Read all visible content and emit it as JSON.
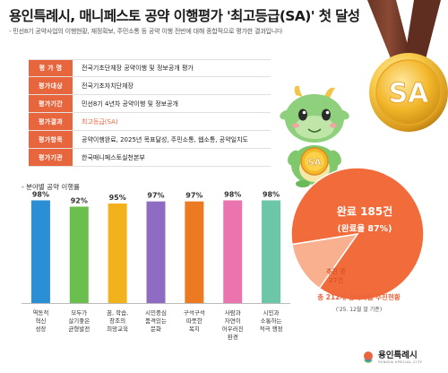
{
  "header": {
    "title": "용인특례시, 매니페스토 공약 이행평가 '최고등급(SA)' 첫 달성",
    "subtitle": "- 민선8기 공약사업의 이행현황, 재정확보, 주민소통 등 공약 이행 전반에 대해 종합적으로 평가한 결과입니다"
  },
  "medal": {
    "label": "SA"
  },
  "info_table": {
    "rows": [
      {
        "label": "평 가 명",
        "value": "전국기초단체장 공약이행 및 정보공개 평가",
        "highlight": false
      },
      {
        "label": "평가대상",
        "value": "전국기초자치단체장",
        "highlight": false
      },
      {
        "label": "평가기간",
        "value": "민선8기 4년차 공약이행 및 정보공개",
        "highlight": false
      },
      {
        "label": "평가결과",
        "value": "최고등급(SA)",
        "highlight": true
      },
      {
        "label": "평가항목",
        "value": "공약이행완료, 2025년 목표달성, 주민소통, 웹소통, 공약일치도",
        "highlight": false
      },
      {
        "label": "평가기관",
        "value": "한국매니페스토실천본부",
        "highlight": false
      }
    ]
  },
  "mascot": {
    "badge": "SA"
  },
  "chart_data": [
    {
      "type": "bar",
      "title": "- 분야별 공약 이행률",
      "categories": [
        "역동적\n혁신\n성장",
        "모두가\n살기좋은\n균형발전",
        "꿈, 학습,\n창조의\n희망교육",
        "시민중심\n품격있는\n문화",
        "구석구석\n따뜻한\n복지",
        "사람과\n자연이\n어우러진\n환경",
        "시민과\n소통하는\n적극 행정"
      ],
      "values": [
        98,
        92,
        95,
        97,
        97,
        98,
        98
      ],
      "value_labels": [
        "98%",
        "92%",
        "95%",
        "97%",
        "97%",
        "98%",
        "98%"
      ],
      "colors": [
        "#2b8fd6",
        "#6bbf4f",
        "#f2b21c",
        "#8e6cc2",
        "#ec7a22",
        "#ea74ae",
        "#6dc6a8"
      ],
      "ylim": [
        0,
        100
      ]
    },
    {
      "type": "pie",
      "slices": [
        {
          "label": "완료 185건",
          "sublabel": "(완료율 87%)",
          "value": 185,
          "color": "#f26b3a"
        },
        {
          "label": "추진 중",
          "sublabel": "27건",
          "value": 27,
          "color": "#f9b08f"
        }
      ],
      "caption": "총 212개 공약사업 추진현황",
      "subcaption": "('25. 12월 말 기준)"
    }
  ],
  "logo": {
    "name": "용인특례시",
    "sub": "YONGIN SPECIAL CITY"
  }
}
